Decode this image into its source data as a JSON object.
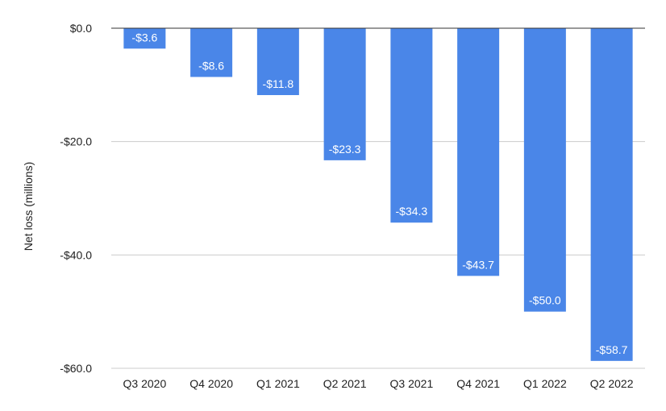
{
  "chart_data": {
    "type": "bar",
    "title": "",
    "xlabel": "",
    "ylabel": "Net loss (millions)",
    "categories": [
      "Q3 2020",
      "Q4 2020",
      "Q1 2021",
      "Q2 2021",
      "Q3 2021",
      "Q4 2021",
      "Q1 2022",
      "Q2 2022"
    ],
    "values": [
      -3.6,
      -8.6,
      -11.8,
      -23.3,
      -34.3,
      -43.7,
      -50.0,
      -58.7
    ],
    "data_labels": [
      "-$3.6",
      "-$8.6",
      "-$11.8",
      "-$23.3",
      "-$34.3",
      "-$43.7",
      "-$50.0",
      "-$58.7"
    ],
    "ylim": [
      -60,
      0
    ],
    "yticks": [
      0,
      -20,
      -40,
      -60
    ],
    "ytick_labels": [
      "$0.0",
      "-$20.0",
      "-$40.0",
      "-$60.0"
    ],
    "grid": true,
    "legend": "none",
    "bar_color": "#4a86e8",
    "gridline_color": "#cccccc",
    "baseline_color": "#333333"
  }
}
